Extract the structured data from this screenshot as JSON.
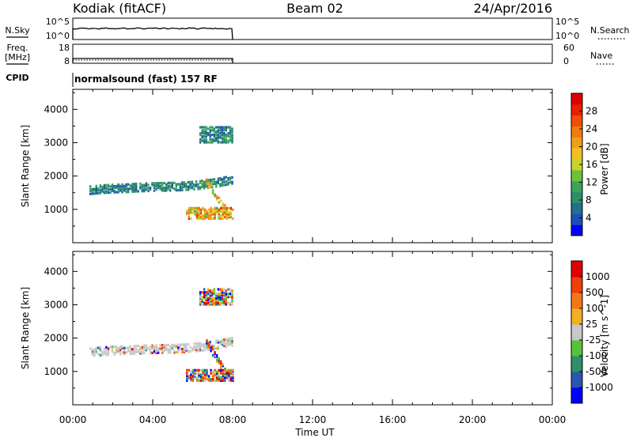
{
  "header": {
    "station": "Kodiak (fitACF)",
    "beam": "Beam 02",
    "date": "24/Apr/2016"
  },
  "sky_panel": {
    "left_label": "N.Sky",
    "left_ticks": [
      "10^5",
      "10^0"
    ],
    "right_ticks": [
      "10^5",
      "10^0"
    ],
    "right_label": "N.Search",
    "data_end_time": "08:00"
  },
  "freq_panel": {
    "left_label_1": "Freq.",
    "left_label_2": "[MHz]",
    "left_ticks": [
      "18",
      "8"
    ],
    "right_ticks": [
      "60",
      "0"
    ],
    "right_label": "Nave",
    "data_end_time": "08:00"
  },
  "cpid": {
    "label": "CPID",
    "value": "normalsound (fast) 157 RF"
  },
  "chart_data": [
    {
      "type": "heatmap",
      "title": "",
      "xlabel": "Time UT",
      "ylabel": "Slant Range [km]",
      "xlim": [
        "00:00",
        "24:00"
      ],
      "ylim": [
        0,
        4600
      ],
      "yticks": [
        "4000",
        "3000",
        "2000",
        "1000"
      ],
      "colorbar": {
        "label": "Power [dB]",
        "ticks": [
          "28",
          "24",
          "20",
          "16",
          "12",
          "8",
          "4"
        ],
        "colors": [
          "#0000ff",
          "#1e4fb4",
          "#226e8c",
          "#2b8f6a",
          "#3aa55a",
          "#6cc23a",
          "#c8d230",
          "#f0c020",
          "#f0a018",
          "#f07c10",
          "#ee5008",
          "#e82000",
          "#e00000"
        ]
      },
      "echo_regions": [
        {
          "name": "F-region trace",
          "start": "00:50",
          "end": "08:00",
          "range_km": [
            1400,
            2200
          ],
          "power_dB": [
            4,
            12
          ]
        },
        {
          "name": "descending echo",
          "start": "06:40",
          "end": "07:40",
          "range_km": [
            1000,
            1900
          ],
          "power_dB": [
            12,
            24
          ]
        },
        {
          "name": "near-range echo",
          "start": "05:40",
          "end": "08:00",
          "range_km": [
            800,
            1050
          ],
          "power_dB": [
            12,
            28
          ]
        },
        {
          "name": "far-range echo",
          "start": "06:20",
          "end": "08:00",
          "range_km": [
            3050,
            3500
          ],
          "power_dB": [
            4,
            12
          ]
        }
      ]
    },
    {
      "type": "heatmap",
      "title": "",
      "xlabel": "Time UT",
      "ylabel": "Slant Range [km]",
      "xlim": [
        "00:00",
        "24:00"
      ],
      "ylim": [
        0,
        4600
      ],
      "yticks": [
        "4000",
        "3000",
        "2000",
        "1000"
      ],
      "colorbar": {
        "label": "Velocity [m s^-1]",
        "ticks": [
          "1000",
          "500",
          "100",
          "25",
          "-25",
          "-100",
          "-500",
          "-1000"
        ],
        "colors": [
          "#0000ff",
          "#2a56b0",
          "#2f8f6a",
          "#56c23a",
          "#c8c8c8",
          "#f0b020",
          "#f07818",
          "#ee4008",
          "#e00000"
        ]
      },
      "echo_regions": [
        {
          "name": "F-region trace",
          "start": "00:50",
          "end": "08:00",
          "range_km": [
            1400,
            2200
          ],
          "velocity": "near zero"
        },
        {
          "name": "descending echo",
          "start": "06:40",
          "end": "07:40",
          "range_km": [
            1000,
            1900
          ],
          "velocity": "mixed"
        },
        {
          "name": "near-range echo",
          "start": "05:40",
          "end": "08:00",
          "range_km": [
            800,
            1050
          ],
          "velocity": "mixed"
        },
        {
          "name": "far-range echo",
          "start": "06:20",
          "end": "08:00",
          "range_km": [
            3050,
            3500
          ],
          "velocity": "mixed"
        }
      ]
    }
  ],
  "time_axis": {
    "tick_labels": [
      "00:00",
      "04:00",
      "08:00",
      "12:00",
      "16:00",
      "20:00",
      "00:00"
    ],
    "label": "Time UT"
  }
}
